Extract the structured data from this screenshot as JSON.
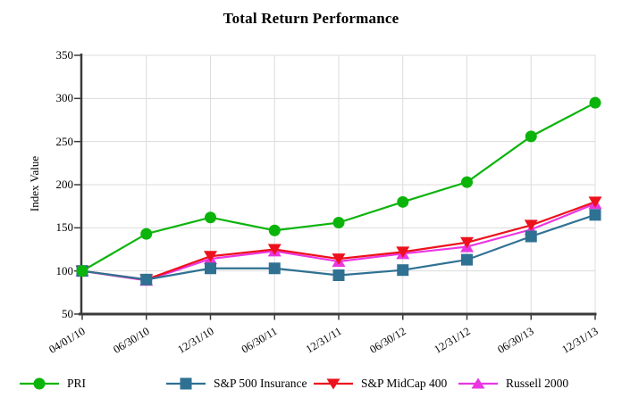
{
  "title": "Total Return Performance",
  "chart_data": {
    "type": "line",
    "title": "Total Return Performance",
    "xlabel": "",
    "ylabel": "Index Value",
    "ylim": [
      50,
      350
    ],
    "y_ticks": [
      50,
      100,
      150,
      200,
      250,
      300,
      350
    ],
    "grid": true,
    "legend_position": "bottom",
    "categories": [
      "04/01/10",
      "06/30/10",
      "12/31/10",
      "06/30/11",
      "12/31/11",
      "06/30/12",
      "12/31/12",
      "06/30/13",
      "12/31/13"
    ],
    "series": [
      {
        "name": "PRI",
        "marker": "circle",
        "color": "#0bb40b",
        "values": [
          100,
          143,
          162,
          147,
          156,
          180,
          203,
          256,
          295
        ]
      },
      {
        "name": "S&P 500 Insurance",
        "marker": "square",
        "color": "#2f7193",
        "values": [
          100,
          90,
          103,
          103,
          95,
          101,
          113,
          140,
          165
        ]
      },
      {
        "name": "S&P MidCap 400",
        "marker": "triangle-down",
        "color": "#ec111c",
        "values": [
          100,
          90,
          117,
          125,
          114,
          122,
          133,
          153,
          180
        ]
      },
      {
        "name": "Russell 2000",
        "marker": "triangle-up",
        "color": "#ea36e2",
        "values": [
          100,
          89,
          114,
          123,
          111,
          120,
          128,
          148,
          178
        ]
      }
    ]
  },
  "colors": {
    "grid": "#dcdcdc",
    "axis": "#3a3a3a",
    "text": "#000000"
  }
}
